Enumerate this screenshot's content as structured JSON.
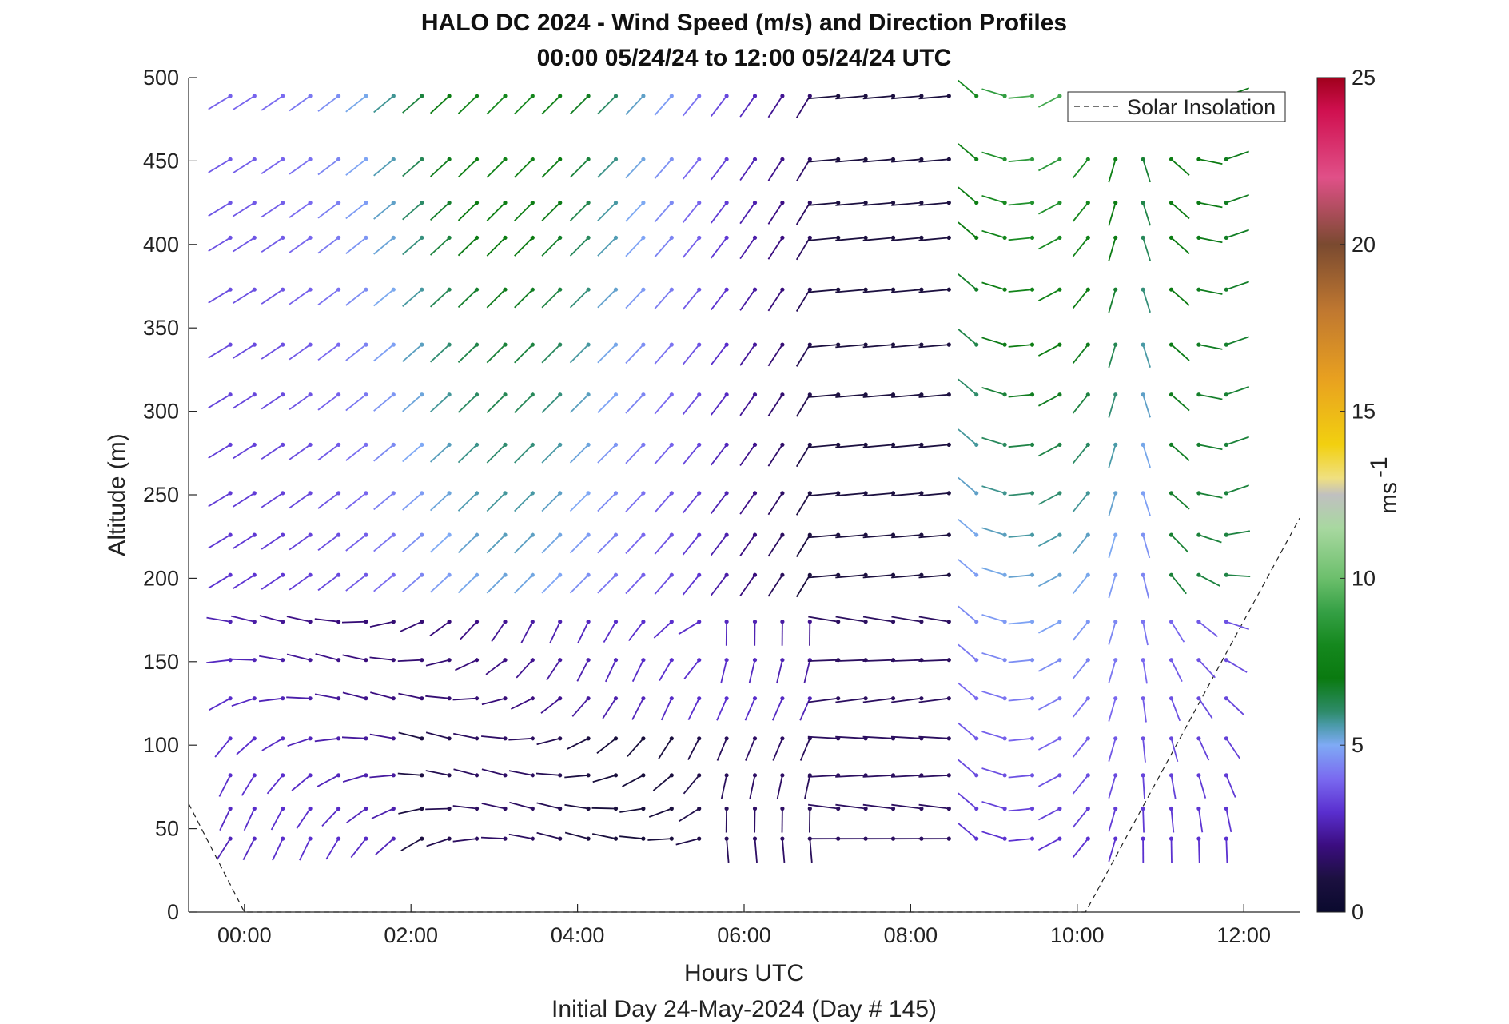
{
  "chart_data": {
    "type": "quiver",
    "title": "HALO DC 2024 - Wind Speed (m/s) and Direction Profiles",
    "subtitle": "00:00 05/24/24 to 12:00 05/24/24  UTC",
    "xlabel": "Hours UTC",
    "ylabel": "Altitude (m)",
    "footer": "Initial Day 24-May-2024 (Day # 145)",
    "xlim_hours": [
      -0.67,
      12.67
    ],
    "ylim": [
      0,
      500
    ],
    "x_ticks": [
      {
        "value": 0,
        "label": "00:00"
      },
      {
        "value": 2,
        "label": "02:00"
      },
      {
        "value": 4,
        "label": "04:00"
      },
      {
        "value": 6,
        "label": "06:00"
      },
      {
        "value": 8,
        "label": "08:00"
      },
      {
        "value": 10,
        "label": "10:00"
      },
      {
        "value": 12,
        "label": "12:00"
      }
    ],
    "y_ticks": [
      0,
      50,
      100,
      150,
      200,
      250,
      300,
      350,
      400,
      450,
      500
    ],
    "colorbar": {
      "label": "ms",
      "label_exp": "-1",
      "range": [
        0,
        25
      ],
      "ticks": [
        0,
        5,
        10,
        15,
        20,
        25
      ]
    },
    "legend": {
      "label": "Solar Insolation",
      "position": "top-right"
    },
    "solar_insolation": [
      [
        -0.67,
        65
      ],
      [
        0,
        0
      ],
      [
        10.1,
        0
      ],
      [
        12.67,
        236
      ]
    ],
    "times": [
      -0.17,
      0.12,
      0.46,
      0.79,
      1.13,
      1.46,
      1.79,
      2.13,
      2.46,
      2.79,
      3.13,
      3.46,
      3.79,
      4.13,
      4.46,
      4.79,
      5.13,
      5.46,
      5.79,
      6.13,
      6.46,
      6.79,
      7.13,
      7.46,
      7.79,
      8.13,
      8.46,
      8.79,
      9.13,
      9.46,
      9.79,
      10.13,
      10.46,
      10.79,
      11.13,
      11.46,
      11.79
    ],
    "altitudes": [
      489,
      451,
      425,
      404,
      373,
      340,
      310,
      280,
      251,
      226,
      202,
      174,
      151,
      128,
      104,
      82,
      62,
      44
    ],
    "grid": false
  },
  "colors": {
    "colormap_stops": [
      [
        0,
        "#0a0a2e"
      ],
      [
        1,
        "#1c1040"
      ],
      [
        2,
        "#3b0d80"
      ],
      [
        3,
        "#5a2fcf"
      ],
      [
        4,
        "#7a6af0"
      ],
      [
        5,
        "#7faaf5"
      ],
      [
        5.6,
        "#4a9aa8"
      ],
      [
        6,
        "#2e8b6a"
      ],
      [
        7,
        "#0a7a10"
      ],
      [
        8,
        "#15881e"
      ],
      [
        9,
        "#35a045"
      ],
      [
        10,
        "#6cbf6c"
      ],
      [
        11.5,
        "#a8d8a0"
      ],
      [
        12.5,
        "#c0c0c0"
      ],
      [
        13,
        "#f0e080"
      ],
      [
        14,
        "#f2d010"
      ],
      [
        16,
        "#e8a020"
      ],
      [
        18,
        "#c07830"
      ],
      [
        20,
        "#7a4a30"
      ],
      [
        22,
        "#e05088"
      ],
      [
        24,
        "#d01050"
      ],
      [
        25,
        "#a0001c"
      ]
    ]
  }
}
